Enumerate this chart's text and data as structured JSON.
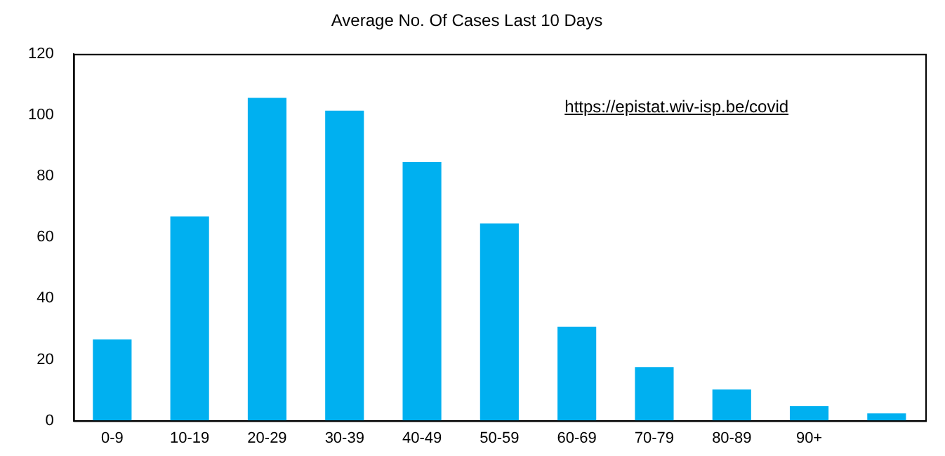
{
  "chart_data": {
    "type": "bar",
    "title": "Average No. Of Cases Last 10 Days",
    "categories": [
      "0-9",
      "10-19",
      "20-29",
      "30-39",
      "40-49",
      "50-59",
      "60-69",
      "70-79",
      "80-89",
      "90+",
      null
    ],
    "values": [
      26.6,
      66.8,
      105.6,
      101.4,
      84.6,
      64.5,
      30.7,
      17.5,
      10.2,
      4.7,
      2.4
    ],
    "color": "#00b0f0",
    "ylim": [
      0,
      120
    ],
    "yticks": [
      0,
      20,
      40,
      60,
      80,
      100,
      120
    ],
    "grid": false,
    "legend": false,
    "annotations": [
      "https://epistat.wiv-isp.be/covid"
    ]
  }
}
